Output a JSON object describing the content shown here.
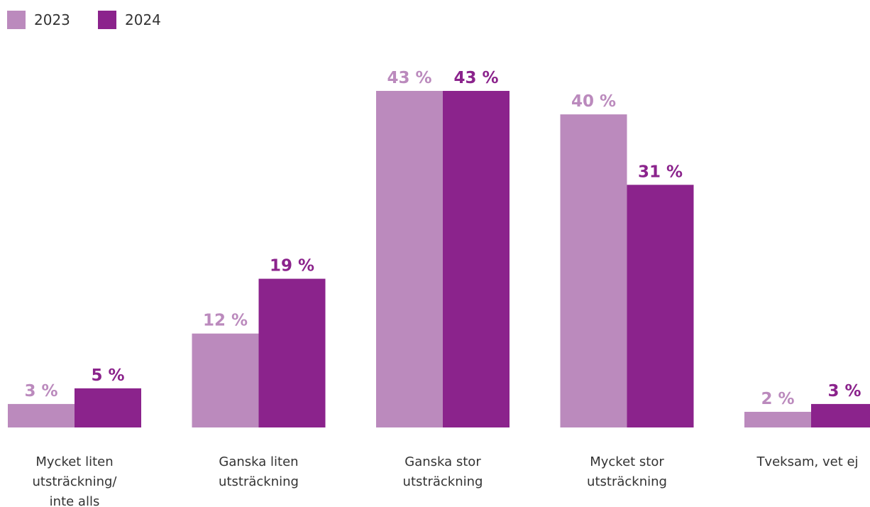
{
  "chart_data": {
    "type": "bar",
    "categories": [
      [
        "Mycket liten",
        "utsträckning/",
        "inte alls"
      ],
      [
        "Ganska liten",
        "utsträckning"
      ],
      [
        "Ganska stor",
        "utsträckning"
      ],
      [
        "Mycket stor",
        "utsträckning"
      ],
      [
        "Tveksam, vet ej"
      ]
    ],
    "series": [
      {
        "name": "2023",
        "values": [
          3,
          12,
          43,
          40,
          2
        ],
        "labels": [
          "3 %",
          "12 %",
          "43 %",
          "40 %",
          "2 %"
        ],
        "color": "#bb8abd"
      },
      {
        "name": "2024",
        "values": [
          5,
          19,
          43,
          31,
          3
        ],
        "labels": [
          "5 %",
          "19 %",
          "43 %",
          "31 %",
          "3 %"
        ],
        "color": "#8b238c"
      }
    ],
    "ylim": [
      0,
      43
    ],
    "legend": "top-left",
    "grid": false
  }
}
